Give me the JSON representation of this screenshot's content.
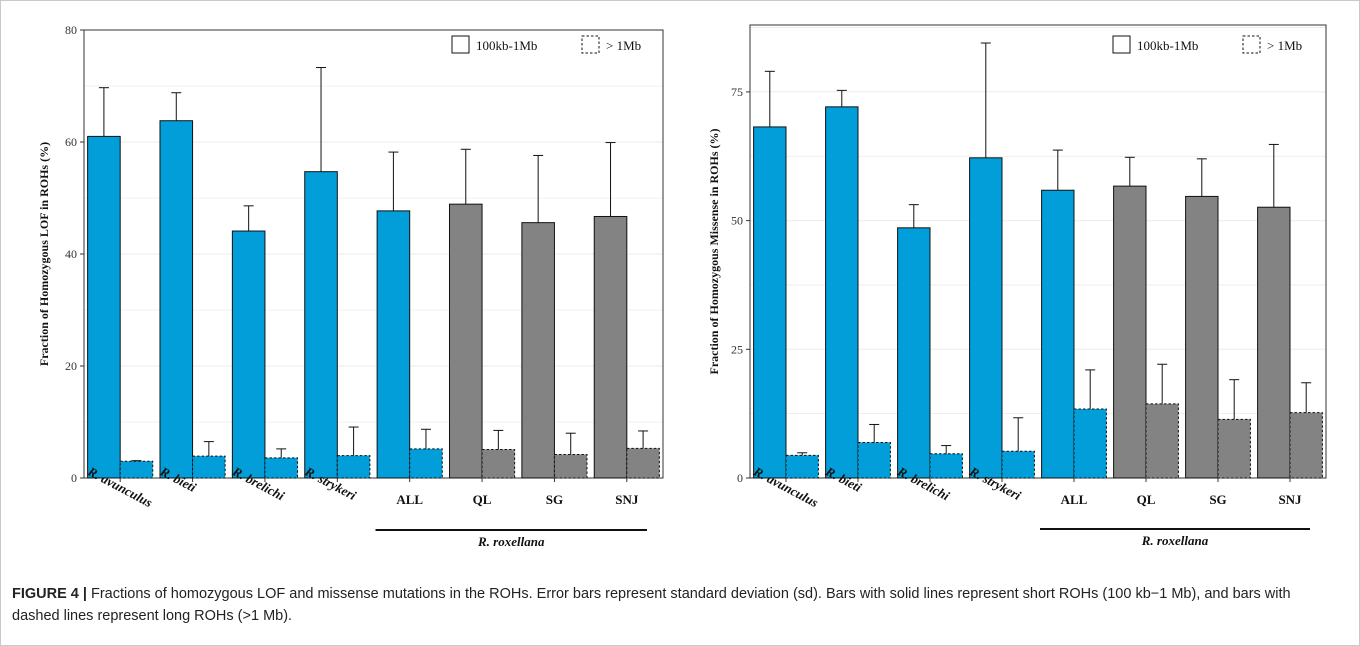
{
  "colors": {
    "blue": "#019ed9",
    "gray": "#838383",
    "outline": "#111111",
    "grid": "#ebebeb"
  },
  "legend": {
    "solid_label": "100kb-1Mb",
    "dashed_label": "> 1Mb"
  },
  "caption": {
    "label": "FIGURE 4 |",
    "text": "Fractions of homozygous LOF and missense mutations in the ROHs. Error bars represent standard deviation (sd). Bars with solid lines represent short ROHs (100 kb−1 Mb), and bars with dashed lines represent long ROHs (>1 Mb)."
  },
  "chart_data": [
    {
      "type": "bar",
      "ylabel": "Fraction of  Homozygous LOF in ROHs (%)",
      "ylim": [
        0,
        80
      ],
      "yticks": [
        0,
        20,
        40,
        60,
        80
      ],
      "categories": [
        "R. avunculus",
        "R. bieti",
        "R. brelichi",
        "R. strykeri",
        "ALL",
        "QL",
        "SG",
        "SNJ"
      ],
      "category_styles": [
        "italic",
        "italic",
        "italic",
        "italic",
        "bold",
        "bold",
        "bold",
        "bold"
      ],
      "category_colors": [
        "blue",
        "blue",
        "blue",
        "blue",
        "blue",
        "gray",
        "gray",
        "gray"
      ],
      "group_label": "R. roxellana",
      "series": [
        {
          "name": "100kb-1Mb",
          "line": "solid",
          "values": [
            61.0,
            63.8,
            44.1,
            54.7,
            47.7,
            48.9,
            45.6,
            46.7
          ],
          "sd": [
            8.7,
            5.0,
            4.5,
            18.6,
            10.5,
            9.8,
            12.0,
            13.2
          ]
        },
        {
          "name": "> 1Mb",
          "line": "dashed",
          "values": [
            3.0,
            3.9,
            3.6,
            4.0,
            5.2,
            5.1,
            4.2,
            5.3
          ],
          "sd": [
            0.1,
            2.6,
            1.6,
            5.1,
            3.5,
            3.4,
            3.8,
            3.1
          ]
        }
      ],
      "grid": true,
      "legend_position": "top-right"
    },
    {
      "type": "bar",
      "ylabel": "Fraction of  Homozygous Missense in ROHs (%)",
      "ylim": [
        0,
        88
      ],
      "yticks": [
        0,
        25,
        50,
        75
      ],
      "categories": [
        "R. avunculus",
        "R. bieti",
        "R. brelichi",
        "R. strykeri",
        "ALL",
        "QL",
        "SG",
        "SNJ"
      ],
      "category_styles": [
        "italic",
        "italic",
        "italic",
        "italic",
        "bold",
        "bold",
        "bold",
        "bold"
      ],
      "category_colors": [
        "blue",
        "blue",
        "blue",
        "blue",
        "blue",
        "gray",
        "gray",
        "gray"
      ],
      "group_label": "R. roxellana",
      "series": [
        {
          "name": "100kb-1Mb",
          "line": "solid",
          "values": [
            68.2,
            72.1,
            48.6,
            62.2,
            55.9,
            56.7,
            54.7,
            52.6
          ],
          "sd": [
            10.8,
            3.2,
            4.5,
            22.3,
            7.8,
            5.6,
            7.3,
            12.2
          ]
        },
        {
          "name": "> 1Mb",
          "line": "dashed",
          "values": [
            4.4,
            6.9,
            4.7,
            5.2,
            13.4,
            14.4,
            11.4,
            12.7
          ],
          "sd": [
            0.5,
            3.5,
            1.6,
            6.5,
            7.6,
            7.7,
            7.7,
            5.8
          ]
        }
      ],
      "grid": true,
      "legend_position": "top-right"
    }
  ]
}
